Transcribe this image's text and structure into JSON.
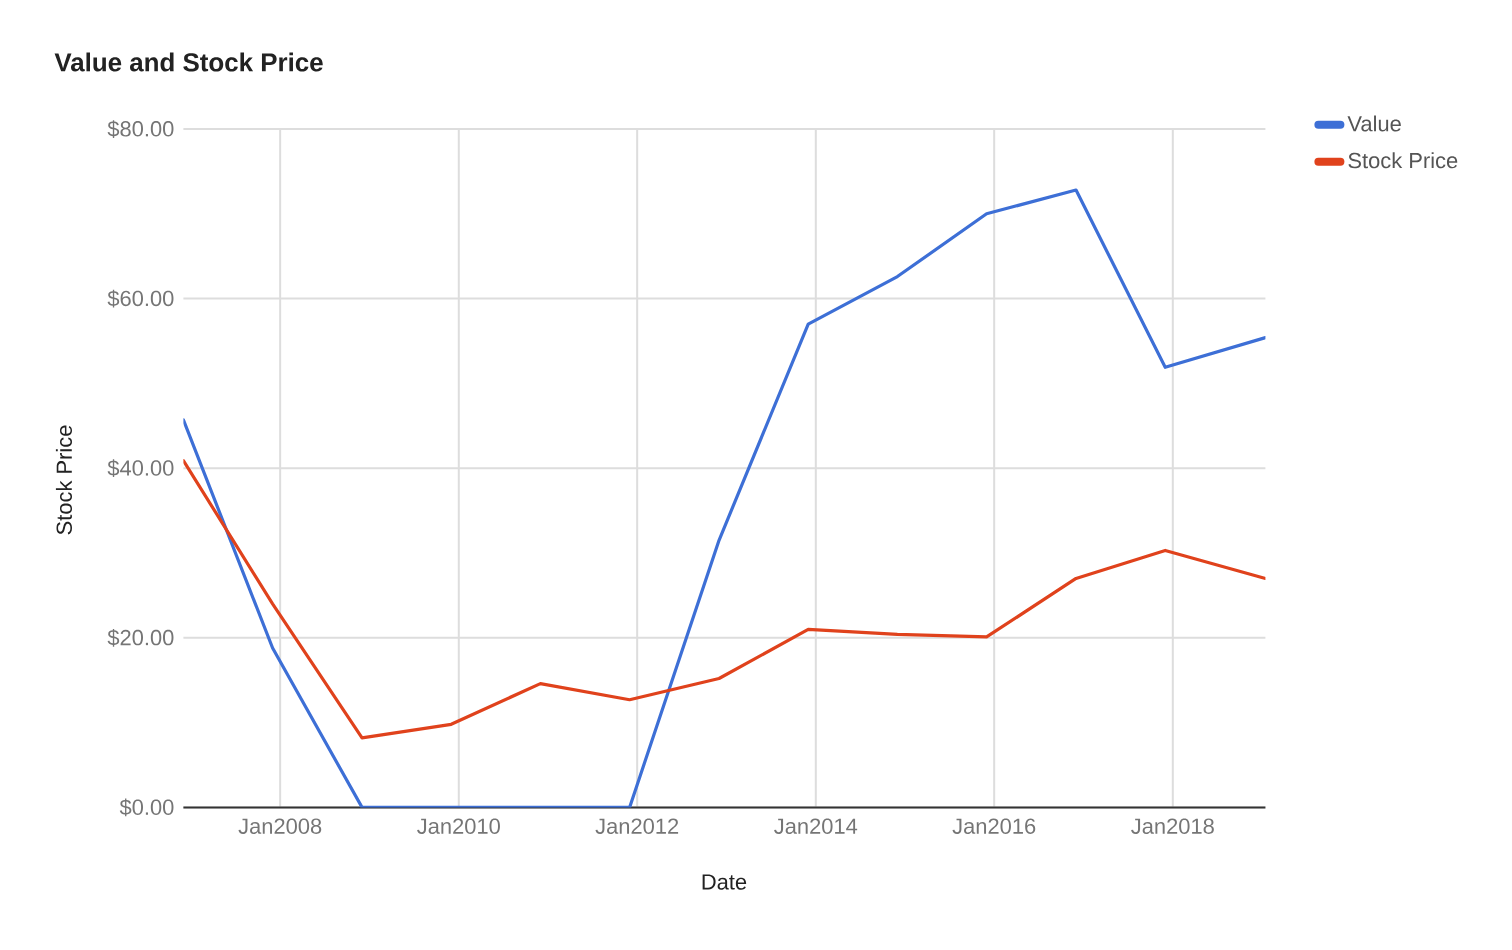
{
  "chart_data": {
    "type": "line",
    "title": "Value and Stock Price",
    "xlabel": "Date",
    "ylabel": "Stock Price",
    "x": [
      "2006-12",
      "2007-12",
      "2008-12",
      "2009-12",
      "2010-12",
      "2011-12",
      "2012-12",
      "2013-12",
      "2014-12",
      "2015-12",
      "2016-12",
      "2017-12",
      "2019-01-15"
    ],
    "series": [
      {
        "name": "Value",
        "color": "#3d6fd6",
        "values": [
          45.7,
          18.8,
          0,
          0,
          0,
          0,
          31.5,
          57.0,
          62.6,
          70.0,
          72.8,
          51.9,
          55.4
        ]
      },
      {
        "name": "Stock Price",
        "color": "#e0421c",
        "values": [
          40.9,
          24.0,
          8.2,
          9.8,
          14.6,
          12.7,
          15.2,
          21.0,
          20.4,
          20.1,
          27.0,
          30.3,
          27.0
        ]
      }
    ],
    "xlim": [
      "2006-12",
      "2019-01-15"
    ],
    "ylim": [
      0,
      80
    ],
    "xticks": [
      {
        "value": "2008-01",
        "label": "Jan2008"
      },
      {
        "value": "2010-01",
        "label": "Jan2010"
      },
      {
        "value": "2012-01",
        "label": "Jan2012"
      },
      {
        "value": "2014-01",
        "label": "Jan2014"
      },
      {
        "value": "2016-01",
        "label": "Jan2016"
      },
      {
        "value": "2018-01",
        "label": "Jan2018"
      }
    ],
    "yticks": [
      {
        "value": 0,
        "label": "$0.00"
      },
      {
        "value": 20,
        "label": "$20.00"
      },
      {
        "value": 40,
        "label": "$40.00"
      },
      {
        "value": 60,
        "label": "$60.00"
      },
      {
        "value": 80,
        "label": "$80.00"
      }
    ],
    "grid": true,
    "legend": "right"
  }
}
